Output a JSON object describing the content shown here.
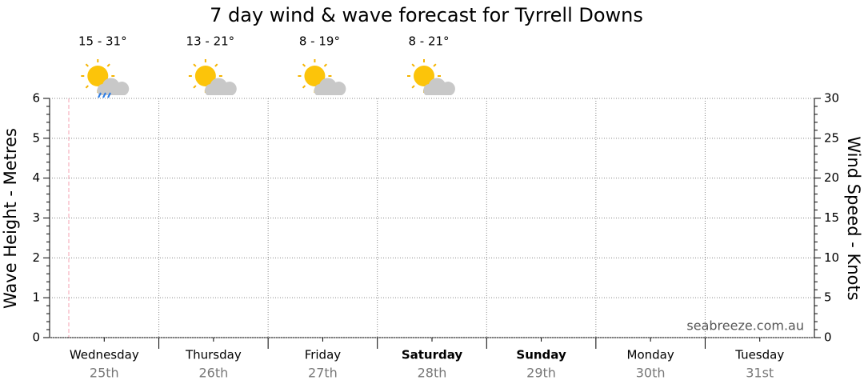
{
  "chart_data": {
    "type": "line",
    "title": "7 day wind & wave forecast for Tyrrell Downs",
    "y_label": "Wave Height - Metres",
    "y2_label": "Wind Speed - Knots",
    "categories": [
      "Wednesday",
      "Thursday",
      "Friday",
      "Saturday",
      "Sunday",
      "Monday",
      "Tuesday"
    ],
    "dates": [
      "25th",
      "26th",
      "27th",
      "28th",
      "29th",
      "30th",
      "31st"
    ],
    "bold": [
      false,
      false,
      false,
      true,
      true,
      false,
      false
    ],
    "temperatures": [
      "15 - 31°",
      "13 - 21°",
      "8 - 19°",
      "8 - 21°"
    ],
    "ylim": [
      0,
      6
    ],
    "yticks": [
      0,
      1,
      2,
      3,
      4,
      5,
      6
    ],
    "y2lim": [
      0,
      30
    ],
    "y2ticks": [
      0,
      5,
      10,
      15,
      20,
      25,
      30
    ],
    "grid": true,
    "series": [],
    "watermark": "seabreeze.com.au"
  }
}
